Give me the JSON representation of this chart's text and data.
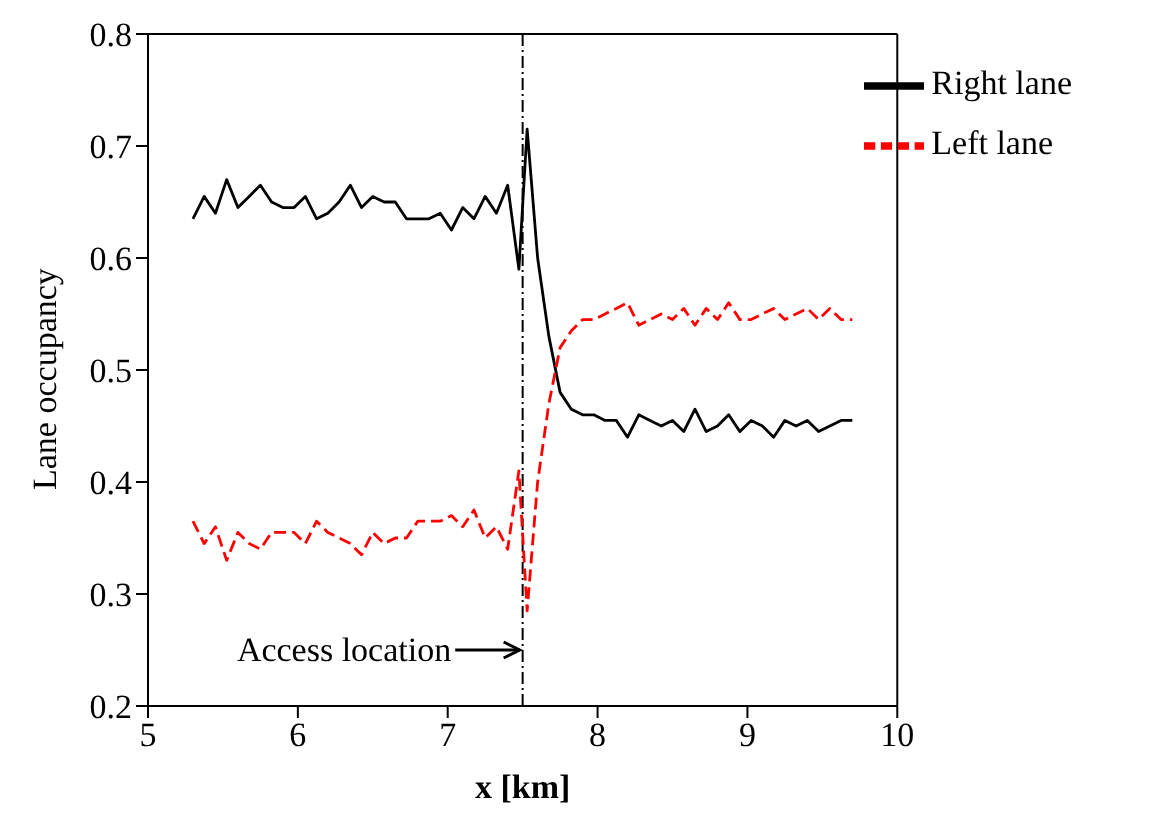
{
  "chart_data": {
    "type": "line",
    "xlabel": "x  [km]",
    "ylabel": "Lane occupancy",
    "x": [
      5.3,
      5.375,
      5.45,
      5.525,
      5.6,
      5.675,
      5.75,
      5.825,
      5.9,
      5.975,
      6.05,
      6.125,
      6.2,
      6.275,
      6.35,
      6.425,
      6.5,
      6.575,
      6.65,
      6.725,
      6.8,
      6.875,
      6.95,
      7.025,
      7.1,
      7.175,
      7.25,
      7.325,
      7.4,
      7.475,
      7.53,
      7.6,
      7.675,
      7.75,
      7.825,
      7.9,
      7.975,
      8.05,
      8.125,
      8.2,
      8.275,
      8.35,
      8.425,
      8.5,
      8.575,
      8.65,
      8.725,
      8.8,
      8.875,
      8.95,
      9.025,
      9.1,
      9.175,
      9.25,
      9.325,
      9.4,
      9.475,
      9.55,
      9.625,
      9.7
    ],
    "series": [
      {
        "name": "Right lane",
        "color": "#000000",
        "line_style": "solid",
        "values": [
          0.635,
          0.655,
          0.64,
          0.67,
          0.645,
          0.655,
          0.665,
          0.65,
          0.645,
          0.645,
          0.655,
          0.635,
          0.64,
          0.65,
          0.665,
          0.645,
          0.655,
          0.65,
          0.65,
          0.635,
          0.635,
          0.635,
          0.64,
          0.625,
          0.645,
          0.635,
          0.655,
          0.64,
          0.665,
          0.59,
          0.715,
          0.6,
          0.53,
          0.48,
          0.465,
          0.46,
          0.46,
          0.455,
          0.455,
          0.44,
          0.46,
          0.455,
          0.45,
          0.455,
          0.445,
          0.465,
          0.445,
          0.45,
          0.46,
          0.445,
          0.455,
          0.45,
          0.44,
          0.455,
          0.45,
          0.455,
          0.445,
          0.45,
          0.455,
          0.455
        ]
      },
      {
        "name": "Left lane",
        "color": "#ff0000",
        "line_style": "dashed",
        "values": [
          0.365,
          0.345,
          0.36,
          0.33,
          0.355,
          0.345,
          0.34,
          0.355,
          0.355,
          0.355,
          0.345,
          0.365,
          0.355,
          0.35,
          0.345,
          0.335,
          0.355,
          0.345,
          0.35,
          0.35,
          0.365,
          0.365,
          0.365,
          0.37,
          0.36,
          0.375,
          0.35,
          0.36,
          0.34,
          0.41,
          0.285,
          0.4,
          0.47,
          0.52,
          0.535,
          0.545,
          0.545,
          0.55,
          0.555,
          0.56,
          0.54,
          0.545,
          0.55,
          0.545,
          0.555,
          0.54,
          0.555,
          0.545,
          0.56,
          0.545,
          0.545,
          0.55,
          0.555,
          0.545,
          0.55,
          0.555,
          0.545,
          0.555,
          0.545,
          0.545
        ]
      }
    ],
    "xlim": [
      5,
      10
    ],
    "xticks": [
      5,
      6,
      7,
      8,
      9,
      10
    ],
    "ylim": [
      0.2,
      0.8
    ],
    "yticks": [
      0.2,
      0.3,
      0.4,
      0.5,
      0.6,
      0.7,
      0.8
    ],
    "ref_lines": [
      {
        "axis": "x",
        "value": 7.5,
        "line_style": "dashdot",
        "color": "#000000"
      }
    ],
    "annotations": [
      {
        "text": "Access location",
        "x": 7.5,
        "y": 0.25
      }
    ],
    "grid": false,
    "legend": "top right",
    "marker": "none"
  }
}
